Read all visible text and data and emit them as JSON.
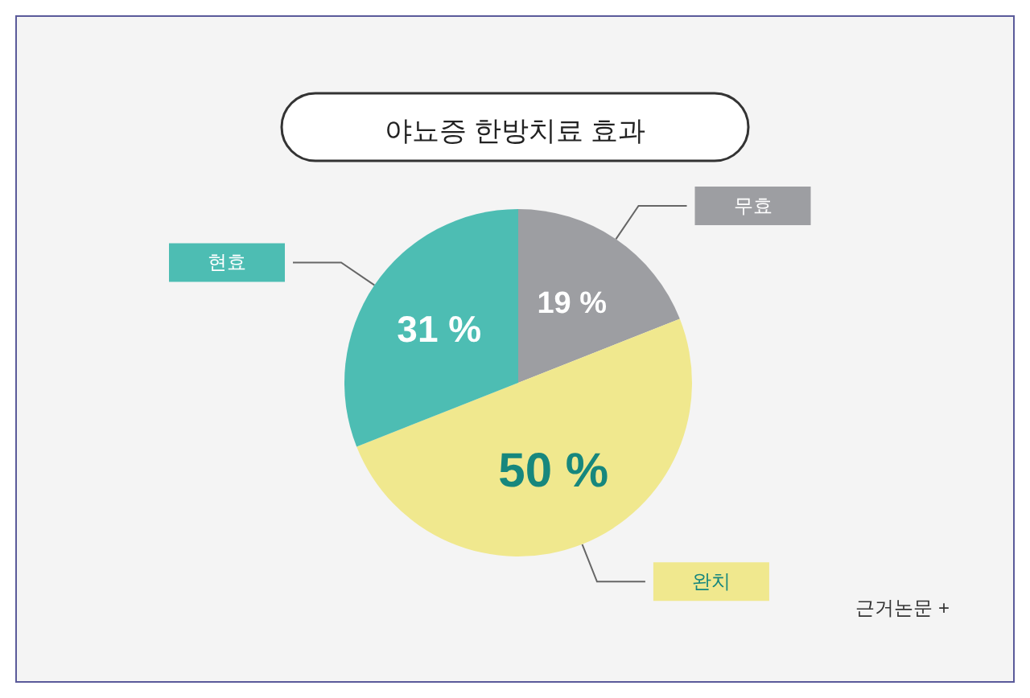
{
  "chart_data": {
    "type": "pie",
    "title": "야뇨증 한방치료 효과",
    "categories": [
      "무효",
      "완치",
      "현효"
    ],
    "values": [
      19,
      50,
      31
    ],
    "value_labels": [
      "19 %",
      "50 %",
      "31 %"
    ],
    "colors": [
      "#9d9ea2",
      "#f0e88e",
      "#4dbdb3"
    ],
    "legend": false,
    "annotations": [
      "근거논문 +"
    ]
  }
}
